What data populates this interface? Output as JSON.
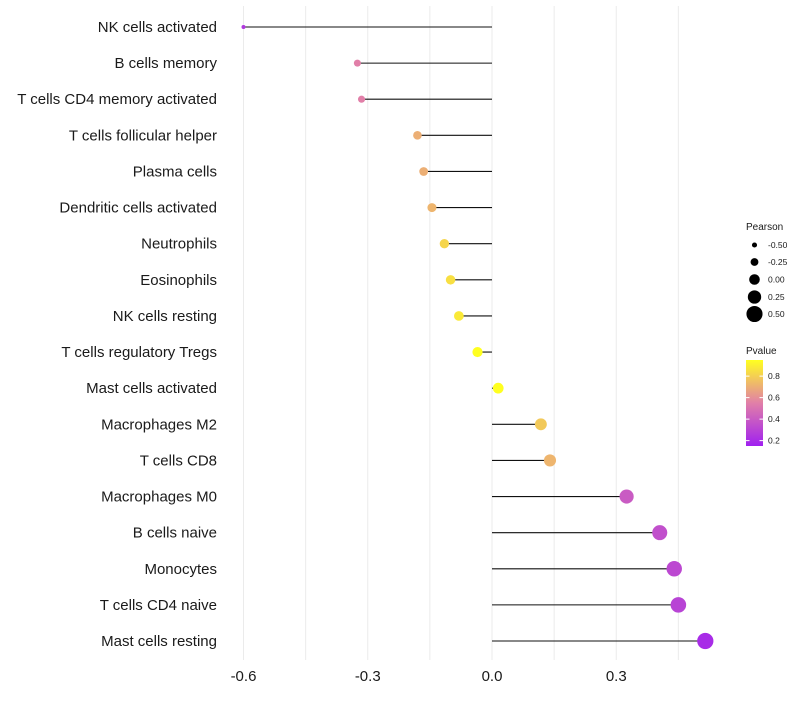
{
  "chart_data": {
    "type": "lollipop",
    "title": "",
    "xlabel": "",
    "ylabel": "",
    "xlim": [
      -0.62,
      0.56
    ],
    "x_ticks": [
      -0.6,
      -0.3,
      0.0,
      0.3
    ],
    "x_tick_labels": [
      "-0.6",
      "-0.3",
      "0.0",
      "0.3"
    ],
    "baseline": 0.0,
    "grid": "vertical",
    "categories": [
      "NK cells activated",
      "B cells memory",
      "T cells CD4 memory activated",
      "T cells follicular helper",
      "Plasma cells",
      "Dendritic cells activated",
      "Neutrophils",
      "Eosinophils",
      "NK cells resting",
      "T cells regulatory  Tregs ",
      "Mast cells activated",
      "Macrophages M2",
      "T cells CD8",
      "Macrophages M0",
      "B cells naive",
      "Monocytes",
      "T cells CD4 naive",
      "Mast cells resting"
    ],
    "series": [
      {
        "name": "Pearson",
        "values": [
          -0.6,
          -0.325,
          -0.315,
          -0.18,
          -0.165,
          -0.145,
          -0.115,
          -0.1,
          -0.08,
          -0.035,
          0.015,
          0.118,
          0.14,
          0.325,
          0.405,
          0.44,
          0.45,
          0.515
        ]
      },
      {
        "name": "Pvalue",
        "values": [
          0.25,
          0.55,
          0.55,
          0.7,
          0.7,
          0.72,
          0.82,
          0.85,
          0.88,
          0.97,
          0.97,
          0.78,
          0.72,
          0.4,
          0.35,
          0.32,
          0.3,
          0.2
        ]
      }
    ],
    "legend": {
      "position": "right",
      "size": {
        "title": "Pearson",
        "labels": [
          "-0.50",
          "-0.25",
          "0.00",
          "0.25",
          "0.50"
        ],
        "values": [
          -0.5,
          -0.25,
          0.0,
          0.25,
          0.5
        ]
      },
      "color": {
        "title": "Pvalue",
        "labels": [
          "0.8",
          "0.6",
          "0.4",
          "0.2"
        ],
        "values": [
          0.8,
          0.6,
          0.4,
          0.2
        ],
        "range": [
          0.15,
          0.95
        ]
      }
    },
    "colors": {
      "low": "#a020f0",
      "mid": "#e17fa8",
      "high": "#ffff20",
      "stem": "#111111",
      "grid": "#ebebeb",
      "size_legend_dot": "#000000"
    }
  }
}
